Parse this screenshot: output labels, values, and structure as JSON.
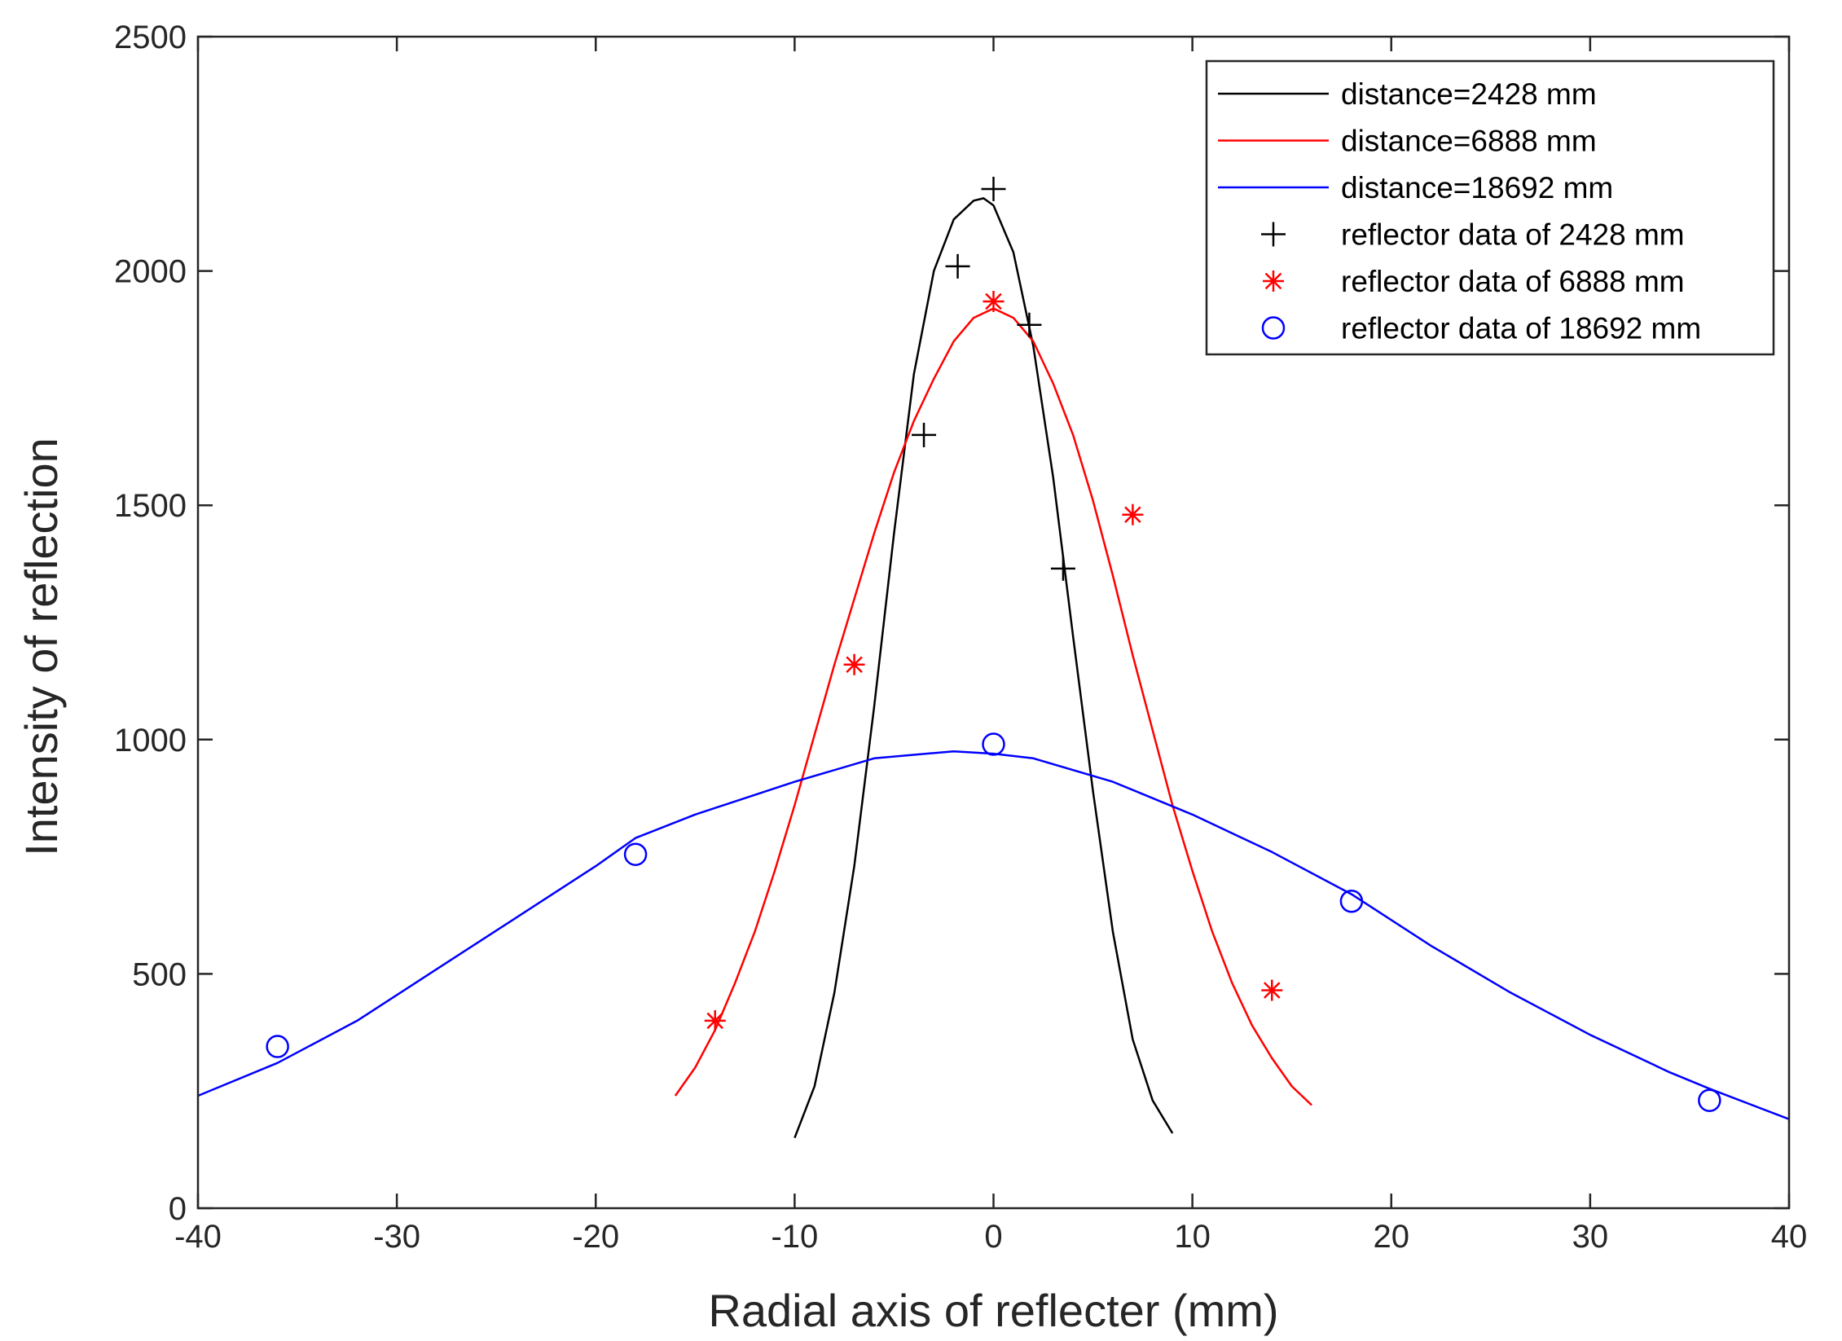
{
  "chart_data": {
    "type": "line",
    "title": "",
    "xlabel": "Radial axis of reflecter (mm)",
    "ylabel": "Intensity of reflection",
    "xlim": [
      -40,
      40
    ],
    "ylim": [
      0,
      2500
    ],
    "xticks": [
      -40,
      -30,
      -20,
      -10,
      0,
      10,
      20,
      30,
      40
    ],
    "yticks": [
      0,
      500,
      1000,
      1500,
      2000,
      2500
    ],
    "legend_position": "top-right",
    "series": [
      {
        "name": "distance=2428 mm",
        "kind": "line",
        "color": "#000000",
        "x": [
          -10,
          -9,
          -8,
          -7,
          -6,
          -5,
          -4,
          -3,
          -2,
          -1,
          -0.5,
          0,
          1,
          2,
          3,
          4,
          5,
          6,
          7,
          8,
          9
        ],
        "y": [
          150,
          260,
          460,
          730,
          1070,
          1440,
          1780,
          2000,
          2110,
          2150,
          2155,
          2140,
          2040,
          1840,
          1560,
          1220,
          890,
          590,
          360,
          230,
          160
        ]
      },
      {
        "name": "distance=6888 mm",
        "kind": "line",
        "color": "#ff0000",
        "x": [
          -16,
          -15,
          -14,
          -13,
          -12,
          -11,
          -10,
          -9,
          -8,
          -7,
          -6,
          -5,
          -4,
          -3,
          -2,
          -1,
          0,
          1,
          2,
          3,
          4,
          5,
          6,
          7,
          8,
          9,
          10,
          11,
          12,
          13,
          14,
          15,
          16
        ],
        "y": [
          240,
          300,
          380,
          480,
          590,
          720,
          860,
          1010,
          1160,
          1300,
          1440,
          1570,
          1680,
          1770,
          1850,
          1900,
          1920,
          1900,
          1850,
          1760,
          1650,
          1510,
          1350,
          1180,
          1020,
          860,
          720,
          590,
          480,
          390,
          320,
          260,
          220
        ]
      },
      {
        "name": "distance=18692 mm",
        "kind": "line",
        "color": "#0000ff",
        "x": [
          -40,
          -36,
          -32,
          -28,
          -24,
          -20,
          -18,
          -15,
          -10,
          -6,
          -2,
          0,
          2,
          6,
          10,
          14,
          18,
          22,
          26,
          30,
          34,
          36,
          40
        ],
        "y": [
          240,
          310,
          400,
          510,
          620,
          730,
          790,
          840,
          910,
          960,
          975,
          970,
          960,
          910,
          840,
          760,
          670,
          560,
          460,
          370,
          290,
          255,
          190
        ]
      },
      {
        "name": "reflector data of 2428 mm",
        "kind": "markers",
        "marker": "plus",
        "color": "#000000",
        "x": [
          -3.5,
          -1.8,
          0,
          1.8,
          3.5
        ],
        "y": [
          1650,
          2010,
          2175,
          1885,
          1365
        ]
      },
      {
        "name": "reflector data of 6888 mm",
        "kind": "markers",
        "marker": "asterisk",
        "color": "#ff0000",
        "x": [
          -14,
          -7,
          0,
          7,
          14
        ],
        "y": [
          400,
          1160,
          1935,
          1480,
          465
        ]
      },
      {
        "name": "reflector data of 18692 mm",
        "kind": "markers",
        "marker": "circle",
        "color": "#0000ff",
        "x": [
          -36,
          -18,
          0,
          18,
          36
        ],
        "y": [
          345,
          755,
          990,
          655,
          230
        ]
      }
    ]
  }
}
